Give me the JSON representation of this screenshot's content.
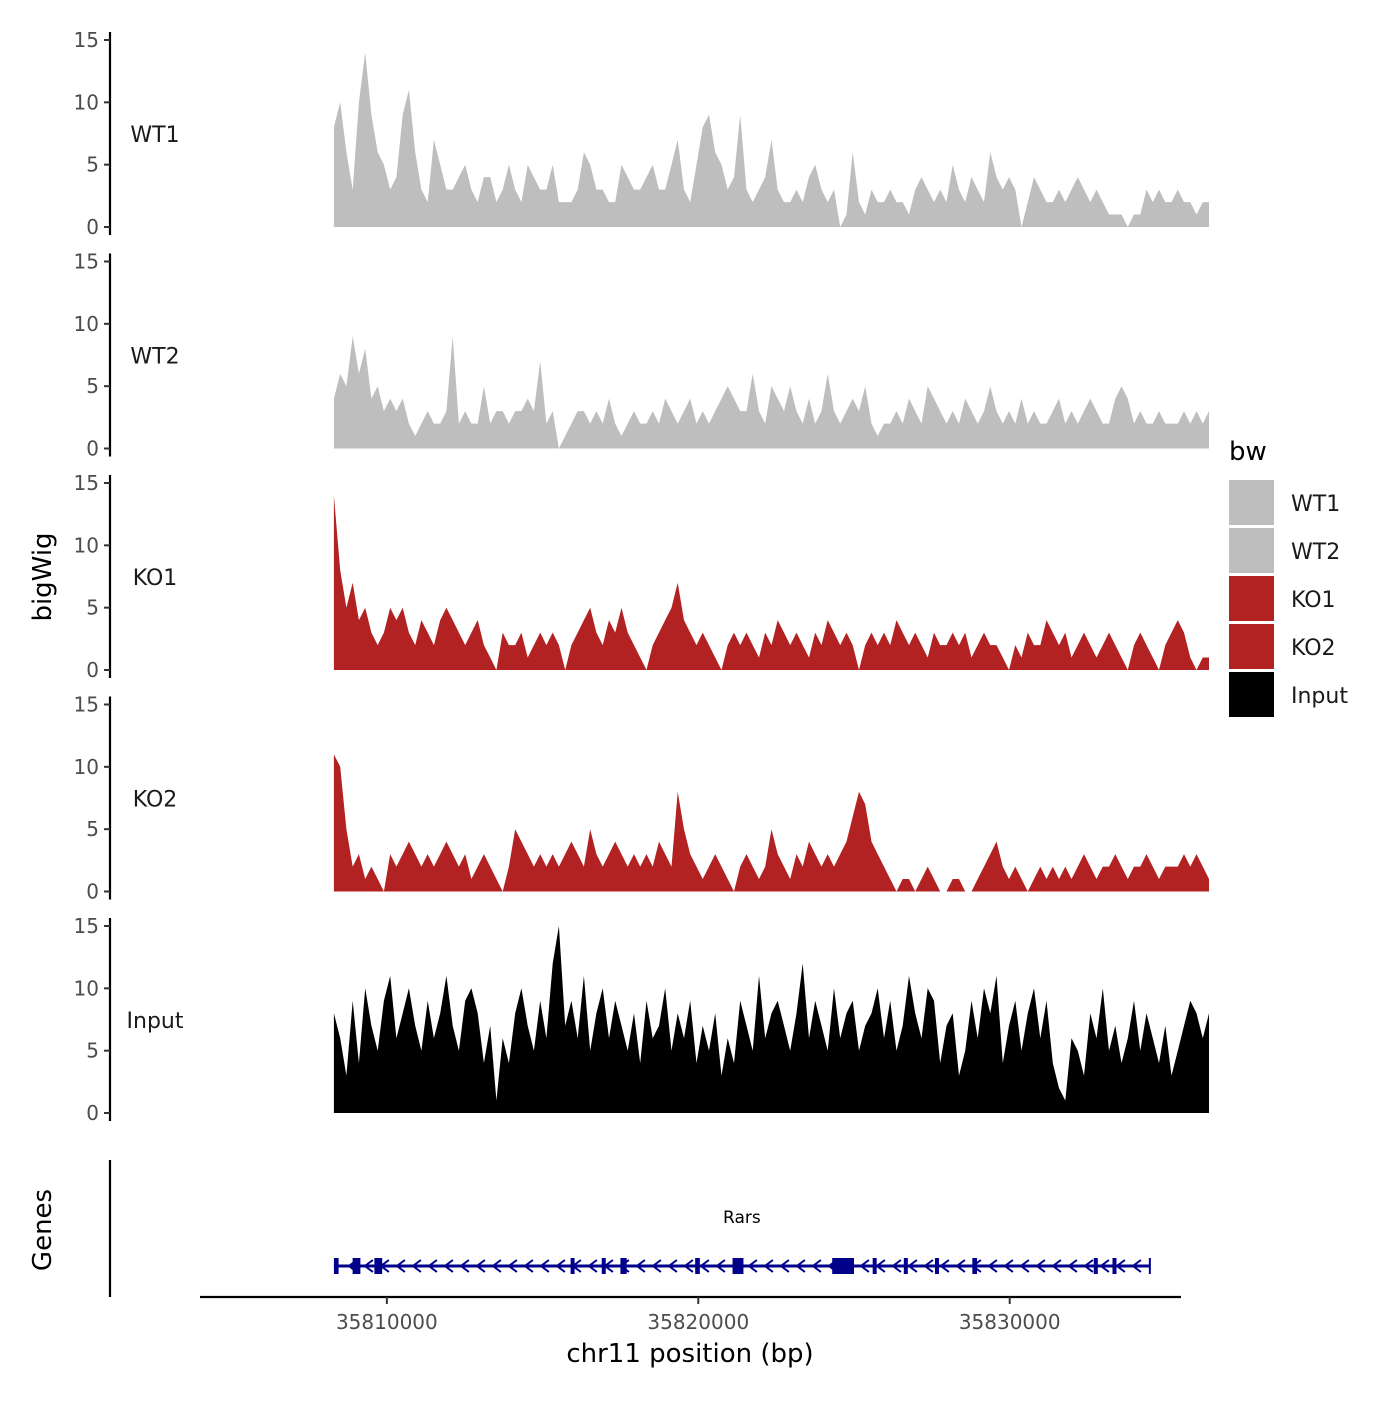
{
  "chart_data": {
    "type": "area",
    "ylabel": "bigWig",
    "xlabel": "chr11 position (bp)",
    "genes_label": "Genes",
    "xlim": [
      35804000,
      35835500
    ],
    "x_range_data": [
      35808300,
      35836400
    ],
    "x_ticks": [
      35810000,
      35820000,
      35830000
    ],
    "x_tick_labels": [
      "35810000",
      "35820000",
      "35830000"
    ],
    "ylim": [
      0,
      15
    ],
    "y_ticks": [
      0,
      5,
      10,
      15
    ],
    "y_tick_labels": [
      "0",
      "5",
      "10",
      "15"
    ],
    "grid": false,
    "legend": {
      "title": "bw",
      "position": "right",
      "entries": [
        {
          "label": "WT1",
          "color": "#bebebe"
        },
        {
          "label": "WT2",
          "color": "#bebebe"
        },
        {
          "label": "KO1",
          "color": "#b22222"
        },
        {
          "label": "KO2",
          "color": "#b22222"
        },
        {
          "label": "Input",
          "color": "#000000"
        }
      ]
    },
    "series": [
      {
        "name": "WT1",
        "color": "#bebebe",
        "values": [
          8,
          10,
          6,
          3,
          10,
          14,
          9,
          6,
          5,
          3,
          4,
          9,
          11,
          6,
          3,
          2,
          7,
          5,
          3,
          3,
          4,
          5,
          3,
          2,
          4,
          4,
          2,
          3,
          5,
          3,
          2,
          5,
          4,
          3,
          3,
          5,
          2,
          2,
          2,
          3,
          6,
          5,
          3,
          3,
          2,
          2,
          5,
          4,
          3,
          3,
          4,
          5,
          3,
          3,
          5,
          7,
          3,
          2,
          5,
          8,
          9,
          6,
          5,
          3,
          4,
          9,
          3,
          2,
          3,
          4,
          7,
          3,
          2,
          2,
          3,
          2,
          4,
          5,
          3,
          2,
          3,
          0,
          1,
          6,
          2,
          1,
          3,
          2,
          2,
          3,
          2,
          2,
          1,
          3,
          4,
          3,
          2,
          3,
          2,
          5,
          3,
          2,
          4,
          3,
          2,
          6,
          4,
          3,
          4,
          3,
          0,
          2,
          4,
          3,
          2,
          2,
          3,
          2,
          3,
          4,
          3,
          2,
          3,
          2,
          1,
          1,
          1,
          0,
          1,
          1,
          3,
          2,
          3,
          2,
          2,
          3,
          2,
          2,
          1,
          2,
          2
        ]
      },
      {
        "name": "WT2",
        "color": "#bebebe",
        "values": [
          4,
          6,
          5,
          9,
          6,
          8,
          4,
          5,
          3,
          4,
          3,
          4,
          2,
          1,
          2,
          3,
          2,
          2,
          3,
          9,
          2,
          3,
          2,
          2,
          5,
          2,
          3,
          3,
          2,
          3,
          3,
          4,
          3,
          7,
          2,
          3,
          0,
          1,
          2,
          3,
          3,
          2,
          3,
          2,
          4,
          2,
          1,
          2,
          3,
          2,
          2,
          3,
          2,
          4,
          3,
          2,
          3,
          4,
          2,
          3,
          2,
          3,
          4,
          5,
          4,
          3,
          3,
          6,
          3,
          2,
          5,
          4,
          3,
          5,
          3,
          2,
          4,
          2,
          3,
          6,
          3,
          2,
          3,
          4,
          3,
          5,
          2,
          1,
          2,
          2,
          3,
          2,
          4,
          3,
          2,
          5,
          4,
          3,
          2,
          3,
          2,
          4,
          3,
          2,
          3,
          5,
          3,
          2,
          3,
          2,
          4,
          2,
          3,
          2,
          2,
          3,
          4,
          2,
          3,
          2,
          3,
          4,
          3,
          2,
          2,
          4,
          5,
          4,
          2,
          3,
          2,
          2,
          3,
          2,
          2,
          2,
          3,
          2,
          3,
          2,
          3
        ]
      },
      {
        "name": "KO1",
        "color": "#b22222",
        "values": [
          14,
          8,
          5,
          7,
          4,
          5,
          3,
          2,
          3,
          5,
          4,
          5,
          3,
          2,
          4,
          3,
          2,
          4,
          5,
          4,
          3,
          2,
          3,
          4,
          2,
          1,
          0,
          3,
          2,
          2,
          3,
          1,
          2,
          3,
          2,
          3,
          2,
          0,
          2,
          3,
          4,
          5,
          3,
          2,
          4,
          3,
          5,
          3,
          2,
          1,
          0,
          2,
          3,
          4,
          5,
          7,
          4,
          3,
          2,
          3,
          2,
          1,
          0,
          2,
          3,
          2,
          3,
          2,
          1,
          3,
          2,
          4,
          3,
          2,
          3,
          2,
          1,
          3,
          2,
          4,
          3,
          2,
          3,
          2,
          0,
          2,
          3,
          2,
          3,
          2,
          4,
          3,
          2,
          3,
          2,
          1,
          3,
          2,
          2,
          3,
          2,
          3,
          1,
          2,
          3,
          2,
          2,
          1,
          0,
          2,
          1,
          3,
          2,
          2,
          4,
          3,
          2,
          3,
          1,
          2,
          3,
          2,
          1,
          2,
          3,
          2,
          1,
          0,
          2,
          3,
          2,
          1,
          0,
          2,
          3,
          4,
          3,
          1,
          0,
          1,
          1
        ]
      },
      {
        "name": "KO2",
        "color": "#b22222",
        "values": [
          11,
          10,
          5,
          2,
          3,
          1,
          2,
          1,
          0,
          3,
          2,
          3,
          4,
          3,
          2,
          3,
          2,
          3,
          4,
          3,
          2,
          3,
          1,
          2,
          3,
          2,
          1,
          0,
          2,
          5,
          4,
          3,
          2,
          3,
          2,
          3,
          2,
          3,
          4,
          3,
          2,
          5,
          3,
          2,
          3,
          4,
          3,
          2,
          3,
          2,
          3,
          2,
          4,
          3,
          2,
          8,
          5,
          3,
          2,
          1,
          2,
          3,
          2,
          1,
          0,
          2,
          3,
          2,
          1,
          2,
          5,
          3,
          2,
          1,
          3,
          2,
          4,
          3,
          2,
          3,
          2,
          3,
          4,
          6,
          8,
          7,
          4,
          3,
          2,
          1,
          0,
          1,
          1,
          0,
          1,
          2,
          1,
          0,
          0,
          1,
          1,
          0,
          0,
          1,
          2,
          3,
          4,
          2,
          1,
          2,
          1,
          0,
          1,
          2,
          1,
          2,
          1,
          2,
          1,
          2,
          3,
          2,
          1,
          2,
          2,
          3,
          2,
          1,
          2,
          2,
          3,
          2,
          1,
          2,
          2,
          2,
          3,
          2,
          3,
          2,
          1
        ]
      },
      {
        "name": "Input",
        "color": "#000000",
        "values": [
          8,
          6,
          3,
          9,
          4,
          10,
          7,
          5,
          9,
          11,
          6,
          8,
          10,
          7,
          5,
          9,
          6,
          8,
          11,
          7,
          5,
          9,
          10,
          8,
          4,
          7,
          1,
          6,
          4,
          8,
          10,
          7,
          5,
          9,
          6,
          12,
          15,
          7,
          9,
          6,
          11,
          5,
          8,
          10,
          6,
          9,
          7,
          5,
          8,
          4,
          9,
          6,
          7,
          10,
          5,
          8,
          6,
          9,
          4,
          7,
          5,
          8,
          3,
          6,
          4,
          9,
          7,
          5,
          11,
          6,
          8,
          9,
          7,
          5,
          8,
          12,
          6,
          9,
          7,
          5,
          10,
          6,
          8,
          9,
          5,
          7,
          8,
          10,
          6,
          9,
          5,
          7,
          11,
          8,
          6,
          10,
          9,
          4,
          7,
          8,
          3,
          5,
          9,
          6,
          10,
          8,
          11,
          4,
          7,
          9,
          5,
          8,
          10,
          6,
          9,
          4,
          2,
          1,
          6,
          5,
          3,
          8,
          6,
          10,
          5,
          7,
          4,
          6,
          9,
          5,
          8,
          6,
          4,
          7,
          3,
          5,
          7,
          9,
          8,
          6,
          8
        ]
      }
    ],
    "gene": {
      "name": "Rars",
      "color": "#00008b",
      "start": 35808300,
      "end": 35834500,
      "strand": "-",
      "exons": [
        [
          35808300,
          35808450
        ],
        [
          35808900,
          35809150
        ],
        [
          35809600,
          35809850
        ],
        [
          35815900,
          35816000
        ],
        [
          35816900,
          35817000
        ],
        [
          35817500,
          35817700
        ],
        [
          35819900,
          35820050
        ],
        [
          35821100,
          35821450
        ],
        [
          35824300,
          35825000
        ],
        [
          35825600,
          35825700
        ],
        [
          35826600,
          35826700
        ],
        [
          35827600,
          35827700
        ],
        [
          35828800,
          35828950
        ],
        [
          35832700,
          35832800
        ],
        [
          35833300,
          35833400
        ]
      ]
    }
  }
}
